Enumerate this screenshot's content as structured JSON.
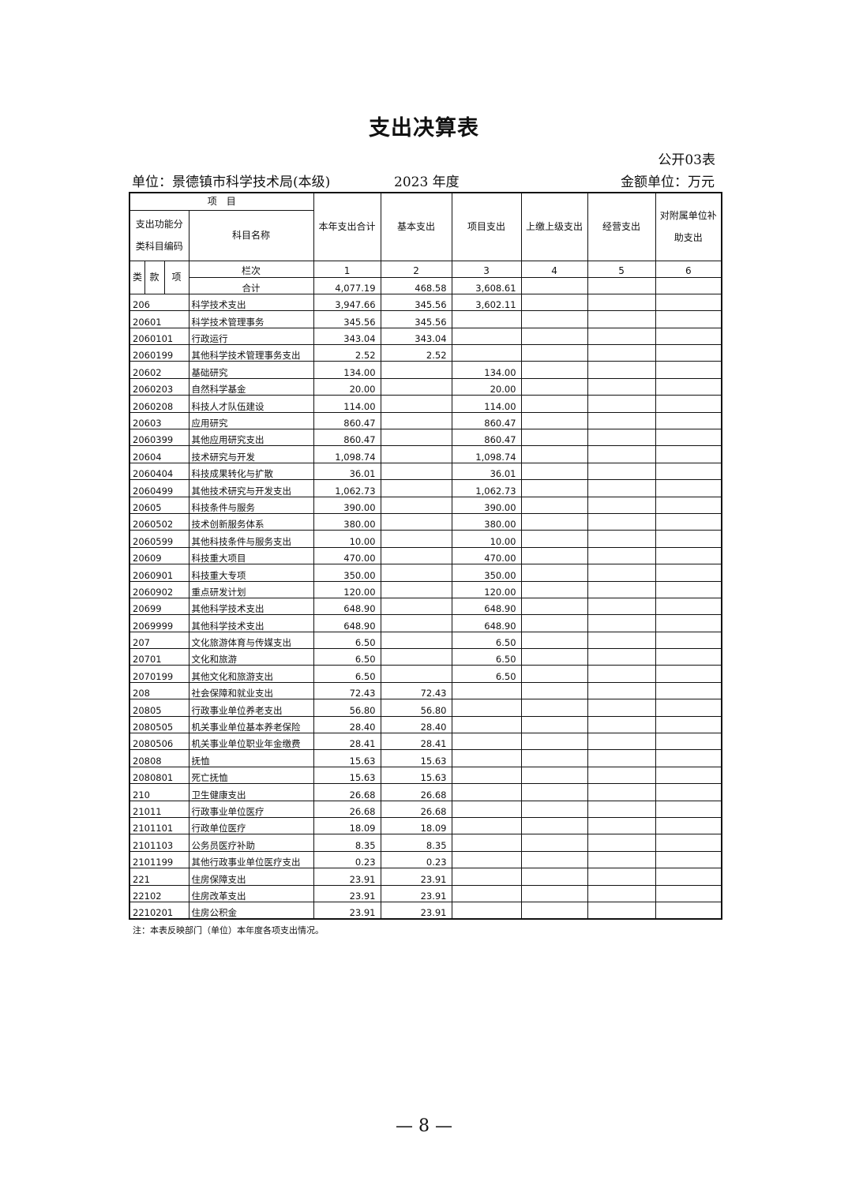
{
  "title": "支出决算表",
  "table_no": "公开03表",
  "unit": "单位：景德镇市科学技术局(本级)",
  "year": "2023 年度",
  "amount_unit": "金额单位：万元",
  "headers": {
    "item": "项　目",
    "code": "支出功能分类科目编码",
    "name": "科目名称",
    "col1": "本年支出合计",
    "col2": "基本支出",
    "col3": "项目支出",
    "col4": "上缴上级支出",
    "col5": "经营支出",
    "col6": "对附属单位补助支出",
    "lei": "类",
    "kuan": "款",
    "xiang": "项",
    "lanci": "栏次",
    "nums": [
      "1",
      "2",
      "3",
      "4",
      "5",
      "6"
    ]
  },
  "total": {
    "label": "合计",
    "values": [
      "4,077.19",
      "468.58",
      "3,608.61",
      "",
      "",
      ""
    ]
  },
  "rows": [
    [
      "206",
      "科学技术支出",
      "3,947.66",
      "345.56",
      "3,602.11"
    ],
    [
      "20601",
      "科学技术管理事务",
      "345.56",
      "345.56",
      ""
    ],
    [
      "2060101",
      "行政运行",
      "343.04",
      "343.04",
      ""
    ],
    [
      "2060199",
      "其他科学技术管理事务支出",
      "2.52",
      "2.52",
      ""
    ],
    [
      "20602",
      "基础研究",
      "134.00",
      "",
      "134.00"
    ],
    [
      "2060203",
      "自然科学基金",
      "20.00",
      "",
      "20.00"
    ],
    [
      "2060208",
      "科技人才队伍建设",
      "114.00",
      "",
      "114.00"
    ],
    [
      "20603",
      "应用研究",
      "860.47",
      "",
      "860.47"
    ],
    [
      "2060399",
      "其他应用研究支出",
      "860.47",
      "",
      "860.47"
    ],
    [
      "20604",
      "技术研究与开发",
      "1,098.74",
      "",
      "1,098.74"
    ],
    [
      "2060404",
      "科技成果转化与扩散",
      "36.01",
      "",
      "36.01"
    ],
    [
      "2060499",
      "其他技术研究与开发支出",
      "1,062.73",
      "",
      "1,062.73"
    ],
    [
      "20605",
      "科技条件与服务",
      "390.00",
      "",
      "390.00"
    ],
    [
      "2060502",
      "技术创新服务体系",
      "380.00",
      "",
      "380.00"
    ],
    [
      "2060599",
      "其他科技条件与服务支出",
      "10.00",
      "",
      "10.00"
    ],
    [
      "20609",
      "科技重大项目",
      "470.00",
      "",
      "470.00"
    ],
    [
      "2060901",
      "科技重大专项",
      "350.00",
      "",
      "350.00"
    ],
    [
      "2060902",
      "重点研发计划",
      "120.00",
      "",
      "120.00"
    ],
    [
      "20699",
      "其他科学技术支出",
      "648.90",
      "",
      "648.90"
    ],
    [
      "2069999",
      "其他科学技术支出",
      "648.90",
      "",
      "648.90"
    ],
    [
      "207",
      "文化旅游体育与传媒支出",
      "6.50",
      "",
      "6.50"
    ],
    [
      "20701",
      "文化和旅游",
      "6.50",
      "",
      "6.50"
    ],
    [
      "2070199",
      "其他文化和旅游支出",
      "6.50",
      "",
      "6.50"
    ],
    [
      "208",
      "社会保障和就业支出",
      "72.43",
      "72.43",
      ""
    ],
    [
      "20805",
      "行政事业单位养老支出",
      "56.80",
      "56.80",
      ""
    ],
    [
      "2080505",
      "机关事业单位基本养老保险",
      "28.40",
      "28.40",
      ""
    ],
    [
      "2080506",
      "机关事业单位职业年金缴费",
      "28.41",
      "28.41",
      ""
    ],
    [
      "20808",
      "抚恤",
      "15.63",
      "15.63",
      ""
    ],
    [
      "2080801",
      "死亡抚恤",
      "15.63",
      "15.63",
      ""
    ],
    [
      "210",
      "卫生健康支出",
      "26.68",
      "26.68",
      ""
    ],
    [
      "21011",
      "行政事业单位医疗",
      "26.68",
      "26.68",
      ""
    ],
    [
      "2101101",
      "行政单位医疗",
      "18.09",
      "18.09",
      ""
    ],
    [
      "2101103",
      "公务员医疗补助",
      "8.35",
      "8.35",
      ""
    ],
    [
      "2101199",
      "其他行政事业单位医疗支出",
      "0.23",
      "0.23",
      ""
    ],
    [
      "221",
      "住房保障支出",
      "23.91",
      "23.91",
      ""
    ],
    [
      "22102",
      "住房改革支出",
      "23.91",
      "23.91",
      ""
    ],
    [
      "2210201",
      "住房公积金",
      "23.91",
      "23.91",
      ""
    ]
  ],
  "note": "注：本表反映部门（单位）本年度各项支出情况。",
  "page_number": "— 8 —"
}
